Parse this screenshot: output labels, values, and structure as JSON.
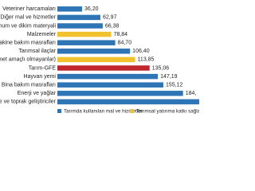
{
  "chart_data": {
    "type": "barh",
    "categories": [
      "Veteriner harcamaları",
      "Diğer mal ve hizmetler",
      "Tohum ve dikim materyali",
      "Malzemeler",
      "Makine bakım masrafları",
      "Tarımsal ilaçlar",
      "amet amaçlı olmayanlar)",
      "Tarım-GFE",
      "Hayvan yemi",
      "Bina bakım masrafları",
      "Enerji ve yağlar",
      "bre ve toprak geliştiriciler"
    ],
    "values": [
      36.2,
      62.97,
      66.38,
      78.84,
      84.7,
      106.4,
      113.85,
      135.06,
      147.19,
      155.12,
      184,
      230
    ],
    "value_labels": [
      "36,20",
      "62,97",
      "66,38",
      "78,84",
      "84,70",
      "106,40",
      "113,85",
      "135,06",
      "147,19",
      "155,12",
      "184,",
      null
    ],
    "colors": [
      "#2e75b6",
      "#2e75b6",
      "#2e75b6",
      "#f2c12e",
      "#2e75b6",
      "#2e75b6",
      "#f2c12e",
      "#c0272d",
      "#2e75b6",
      "#2e75b6",
      "#2e75b6",
      "#2e75b6"
    ],
    "legend": [
      {
        "name": "Tarımda kullanılan mal ve hizmetler",
        "color": "#2e75b6"
      },
      {
        "name": "Tarımsal yatırıma katkı sağlayan mal",
        "color": "#f2c12e"
      }
    ]
  }
}
